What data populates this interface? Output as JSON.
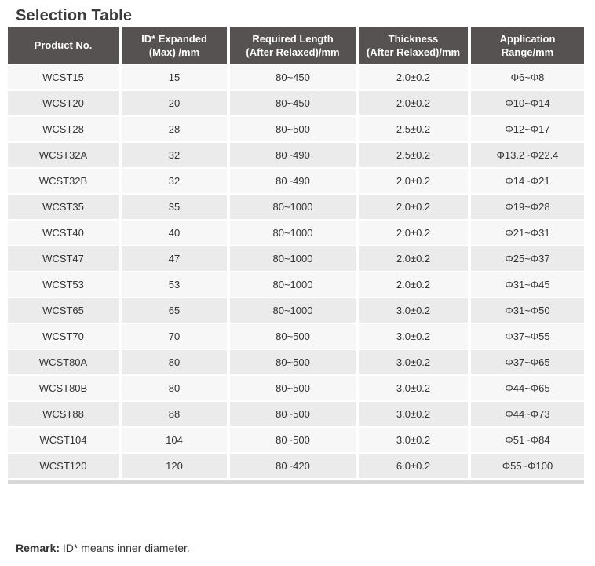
{
  "page": {
    "title": "Selection Table",
    "remark_label": "Remark:",
    "remark_text": " ID* means inner diameter."
  },
  "colors": {
    "title_text": "#3b3b3b",
    "header_bg": "#575252",
    "header_text": "#ffffff",
    "row_odd": "#f7f7f7",
    "row_even": "#ebebeb",
    "body_text": "#333333",
    "bottom_edge": "#d8d8d8"
  },
  "table": {
    "columns": [
      "Product No.",
      "ID* Expanded\n(Max) /mm",
      "Required Length\n(After Relaxed)/mm",
      "Thickness\n(After Relaxed)/mm",
      "Application\nRange/mm"
    ],
    "rows": [
      [
        "WCST15",
        "15",
        "80~450",
        "2.0±0.2",
        "Φ6~Φ8"
      ],
      [
        "WCST20",
        "20",
        "80~450",
        "2.0±0.2",
        "Φ10~Φ14"
      ],
      [
        "WCST28",
        "28",
        "80~500",
        "2.5±0.2",
        "Φ12~Φ17"
      ],
      [
        "WCST32A",
        "32",
        "80~490",
        "2.5±0.2",
        "Φ13.2~Φ22.4"
      ],
      [
        "WCST32B",
        "32",
        "80~490",
        "2.0±0.2",
        "Φ14~Φ21"
      ],
      [
        "WCST35",
        "35",
        "80~1000",
        "2.0±0.2",
        "Φ19~Φ28"
      ],
      [
        "WCST40",
        "40",
        "80~1000",
        "2.0±0.2",
        "Φ21~Φ31"
      ],
      [
        "WCST47",
        "47",
        "80~1000",
        "2.0±0.2",
        "Φ25~Φ37"
      ],
      [
        "WCST53",
        "53",
        "80~1000",
        "2.0±0.2",
        "Φ31~Φ45"
      ],
      [
        "WCST65",
        "65",
        "80~1000",
        "3.0±0.2",
        "Φ31~Φ50"
      ],
      [
        "WCST70",
        "70",
        "80~500",
        "3.0±0.2",
        "Φ37~Φ55"
      ],
      [
        "WCST80A",
        "80",
        "80~500",
        "3.0±0.2",
        "Φ37~Φ65"
      ],
      [
        "WCST80B",
        "80",
        "80~500",
        "3.0±0.2",
        "Φ44~Φ65"
      ],
      [
        "WCST88",
        "88",
        "80~500",
        "3.0±0.2",
        "Φ44~Φ73"
      ],
      [
        "WCST104",
        "104",
        "80~500",
        "3.0±0.2",
        "Φ51~Φ84"
      ],
      [
        "WCST120",
        "120",
        "80~420",
        "6.0±0.2",
        "Φ55~Φ100"
      ]
    ]
  }
}
